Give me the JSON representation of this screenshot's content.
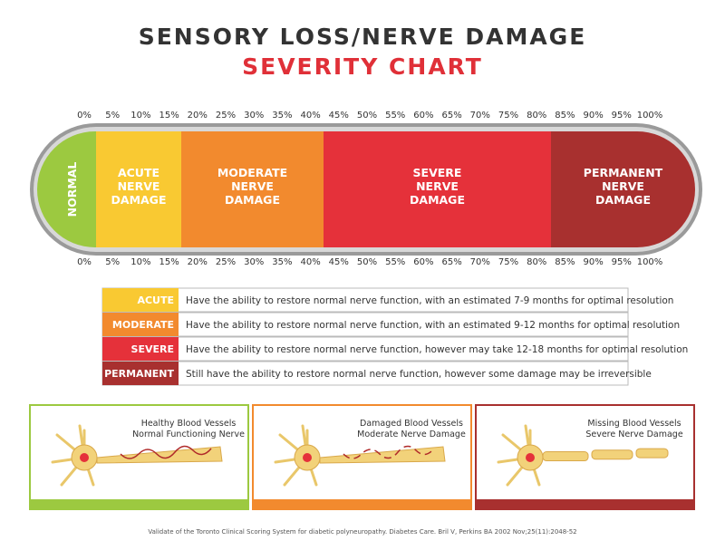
{
  "header": {
    "title": "SENSORY LOSS/NERVE DAMAGE",
    "subtitle": "SEVERITY CHART"
  },
  "scale": [
    "0%",
    "5%",
    "10%",
    "15%",
    "20%",
    "25%",
    "30%",
    "35%",
    "40%",
    "45%",
    "50%",
    "55%",
    "60%",
    "65%",
    "70%",
    "75%",
    "80%",
    "85%",
    "90%",
    "95%",
    "100%"
  ],
  "segments": [
    {
      "lines": [
        "NORMAL"
      ]
    },
    {
      "lines": [
        "ACUTE",
        "NERVE",
        "DAMAGE"
      ]
    },
    {
      "lines": [
        "MODERATE",
        "NERVE",
        "DAMAGE"
      ]
    },
    {
      "lines": [
        "SEVERE",
        "NERVE",
        "DAMAGE"
      ]
    },
    {
      "lines": [
        "PERMANENT",
        "NERVE",
        "DAMAGE"
      ]
    }
  ],
  "legend": [
    {
      "label": "ACUTE",
      "text": "Have the ability to restore normal nerve function, with an estimated 7-9 months for optimal resolution"
    },
    {
      "label": "MODERATE",
      "text": "Have the ability to restore normal nerve function, with an estimated 9-12 months for optimal resolution"
    },
    {
      "label": "SEVERE",
      "text": "Have the ability to restore normal nerve function, however may take 12-18 months for optimal resolution"
    },
    {
      "label": "PERMANENT",
      "text": "Still have the ability to restore normal nerve function, however some damage may be irreversible"
    }
  ],
  "panels": [
    {
      "lines": [
        "Healthy Blood Vessels",
        "Normal Functioning Nerve"
      ]
    },
    {
      "lines": [
        "Damaged Blood Vessels",
        "Moderate Nerve Damage"
      ]
    },
    {
      "lines": [
        "Missing Blood Vessels",
        "Severe Nerve Damage"
      ]
    }
  ],
  "footer": "Validate of the Toronto Clinical Scoring System for diabetic polyneuropathy. Diabetes Care. Bril V, Perkins BA 2002 Nov;25(11):2048-52"
}
